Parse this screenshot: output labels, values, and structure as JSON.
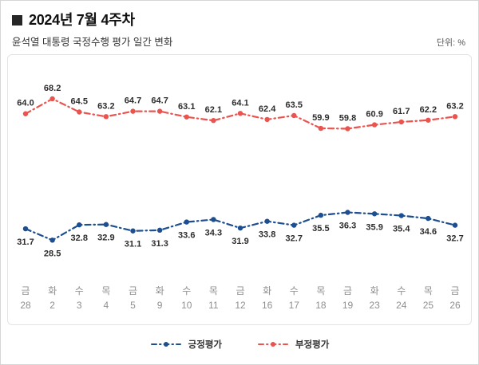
{
  "header": {
    "week_title": "2024년 7월 4주차"
  },
  "chart_data": {
    "type": "line",
    "title": "윤석열 대통령 국정수행 평가 일간 변화",
    "unit": "단위: %",
    "ylim": [
      25,
      72
    ],
    "grid": false,
    "legend_position": "bottom",
    "line_style": "dash-dot",
    "value_labels": true,
    "categories": [
      {
        "day": "금",
        "date": "28"
      },
      {
        "day": "화",
        "date": "2"
      },
      {
        "day": "수",
        "date": "3"
      },
      {
        "day": "목",
        "date": "4"
      },
      {
        "day": "금",
        "date": "5"
      },
      {
        "day": "화",
        "date": "9"
      },
      {
        "day": "수",
        "date": "10"
      },
      {
        "day": "목",
        "date": "11"
      },
      {
        "day": "금",
        "date": "12"
      },
      {
        "day": "화",
        "date": "16"
      },
      {
        "day": "수",
        "date": "17"
      },
      {
        "day": "목",
        "date": "18"
      },
      {
        "day": "금",
        "date": "19"
      },
      {
        "day": "화",
        "date": "23"
      },
      {
        "day": "수",
        "date": "24"
      },
      {
        "day": "목",
        "date": "25"
      },
      {
        "day": "금",
        "date": "26"
      }
    ],
    "series": [
      {
        "name": "긍정평가",
        "color": "#1d4e8f",
        "label_position": "below",
        "values": [
          31.7,
          28.5,
          32.8,
          32.9,
          31.1,
          31.3,
          33.6,
          34.3,
          31.9,
          33.8,
          32.7,
          35.5,
          36.3,
          35.9,
          35.4,
          34.6,
          32.7
        ]
      },
      {
        "name": "부정평가",
        "color": "#e9544f",
        "label_position": "above",
        "values": [
          64.0,
          68.2,
          64.5,
          63.2,
          64.7,
          64.7,
          63.1,
          62.1,
          64.1,
          62.4,
          63.5,
          59.9,
          59.8,
          60.9,
          61.7,
          62.2,
          63.2
        ]
      }
    ]
  }
}
